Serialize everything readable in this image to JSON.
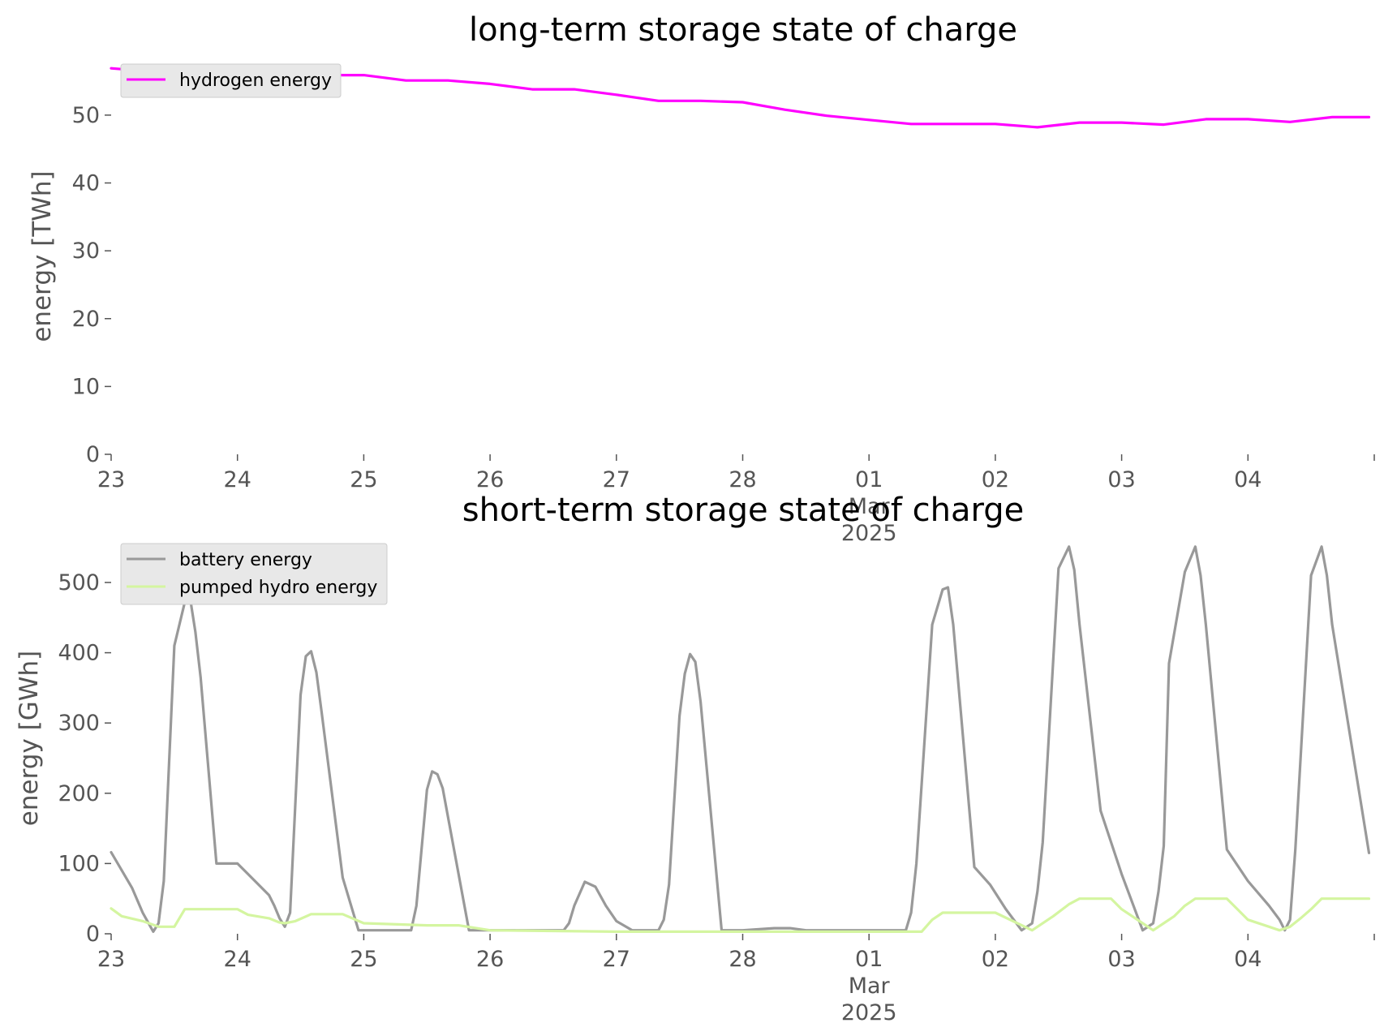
{
  "colors": {
    "hydrogen": "#ff00ff",
    "battery": "#999999",
    "pumped_hydro": "#d4f5a0",
    "axis_text": "#555555",
    "legend_bg": "#e8e8e8",
    "legend_border": "#cccccc"
  },
  "chart_data": [
    {
      "type": "line",
      "title": "long-term storage state of charge",
      "xlabel": "",
      "ylabel": "energy [TWh]",
      "xlim": [
        "2025-02-23 00:00",
        "2025-03-04 23:00"
      ],
      "ylim": [
        0,
        58
      ],
      "grid": false,
      "legend_position": "top-left",
      "y_ticks": [
        "0",
        "10",
        "20",
        "30",
        "40",
        "50"
      ],
      "x_ticks": [
        "23",
        "24",
        "25",
        "26",
        "27",
        "28",
        "01",
        "02",
        "03",
        "04"
      ],
      "x_tick_sublabel": "Mar",
      "x_tick_year": "2025",
      "series": [
        {
          "name": "hydrogen energy",
          "x": [
            "2025-02-23 00:00",
            "2025-02-23 08:00",
            "2025-02-23 16:00",
            "2025-02-24 00:00",
            "2025-02-24 08:00",
            "2025-02-24 16:00",
            "2025-02-24 20:00",
            "2025-02-25 00:00",
            "2025-02-25 08:00",
            "2025-02-25 16:00",
            "2025-02-26 00:00",
            "2025-02-26 08:00",
            "2025-02-26 16:00",
            "2025-02-27 00:00",
            "2025-02-27 08:00",
            "2025-02-27 16:00",
            "2025-02-28 00:00",
            "2025-02-28 08:00",
            "2025-02-28 16:00",
            "2025-03-01 00:00",
            "2025-03-01 08:00",
            "2025-03-01 16:00",
            "2025-03-02 00:00",
            "2025-03-02 08:00",
            "2025-03-02 16:00",
            "2025-03-03 00:00",
            "2025-03-03 08:00",
            "2025-03-03 16:00",
            "2025-03-04 00:00",
            "2025-03-04 08:00",
            "2025-03-04 16:00",
            "2025-03-04 23:00"
          ],
          "y": [
            56.9,
            56.4,
            56.4,
            56.4,
            56.1,
            56.0,
            55.9,
            55.9,
            55.1,
            55.1,
            54.6,
            53.8,
            53.8,
            53.0,
            52.1,
            52.1,
            51.9,
            50.8,
            49.9,
            49.3,
            48.7,
            48.7,
            48.7,
            48.2,
            48.9,
            48.9,
            48.6,
            49.4,
            49.4,
            49.0,
            49.7,
            49.7
          ]
        }
      ]
    },
    {
      "type": "line",
      "title": "short-term storage state of charge",
      "xlabel": "",
      "ylabel": "energy [GWh]",
      "xlim": [
        "2025-02-23 00:00",
        "2025-03-04 23:00"
      ],
      "ylim": [
        0,
        560
      ],
      "grid": false,
      "legend_position": "top-left",
      "y_ticks": [
        "0",
        "100",
        "200",
        "300",
        "400",
        "500"
      ],
      "x_ticks": [
        "23",
        "24",
        "25",
        "26",
        "27",
        "28",
        "01",
        "02",
        "03",
        "04"
      ],
      "x_tick_sublabel": "Mar",
      "x_tick_year": "2025",
      "series": [
        {
          "name": "battery energy",
          "x": [
            "2025-02-23 00:00",
            "2025-02-23 04:00",
            "2025-02-23 06:00",
            "2025-02-23 08:00",
            "2025-02-23 09:00",
            "2025-02-23 10:00",
            "2025-02-23 12:00",
            "2025-02-23 14:00",
            "2025-02-23 15:00",
            "2025-02-23 16:00",
            "2025-02-23 17:00",
            "2025-02-23 20:00",
            "2025-02-24 00:00",
            "2025-02-24 02:00",
            "2025-02-24 06:00",
            "2025-02-24 07:00",
            "2025-02-24 08:00",
            "2025-02-24 09:00",
            "2025-02-24 10:00",
            "2025-02-24 12:00",
            "2025-02-24 13:00",
            "2025-02-24 14:00",
            "2025-02-24 15:00",
            "2025-02-24 16:00",
            "2025-02-24 20:00",
            "2025-02-24 23:00",
            "2025-02-25 06:00",
            "2025-02-25 09:00",
            "2025-02-25 10:00",
            "2025-02-25 12:00",
            "2025-02-25 13:00",
            "2025-02-25 14:00",
            "2025-02-25 15:00",
            "2025-02-25 20:00",
            "2025-02-25 23:00",
            "2025-02-26 14:00",
            "2025-02-26 15:00",
            "2025-02-26 16:00",
            "2025-02-26 18:00",
            "2025-02-26 20:00",
            "2025-02-26 22:00",
            "2025-02-27 00:00",
            "2025-02-27 03:00",
            "2025-02-27 08:00",
            "2025-02-27 09:00",
            "2025-02-27 10:00",
            "2025-02-27 12:00",
            "2025-02-27 13:00",
            "2025-02-27 14:00",
            "2025-02-27 15:00",
            "2025-02-27 16:00",
            "2025-02-27 20:00",
            "2025-02-27 23:00",
            "2025-02-28 00:00",
            "2025-02-28 06:00",
            "2025-02-28 09:00",
            "2025-02-28 12:00",
            "2025-02-28 14:00",
            "2025-03-01 00:00",
            "2025-03-01 07:00",
            "2025-03-01 08:00",
            "2025-03-01 09:00",
            "2025-03-01 12:00",
            "2025-03-01 14:00",
            "2025-03-01 15:00",
            "2025-03-01 16:00",
            "2025-03-01 20:00",
            "2025-03-01 23:00",
            "2025-03-02 02:00",
            "2025-03-02 05:00",
            "2025-03-02 07:00",
            "2025-03-02 08:00",
            "2025-03-02 09:00",
            "2025-03-02 12:00",
            "2025-03-02 14:00",
            "2025-03-02 15:00",
            "2025-03-02 16:00",
            "2025-03-02 20:00",
            "2025-03-03 00:00",
            "2025-03-03 04:00",
            "2025-03-03 06:00",
            "2025-03-03 07:00",
            "2025-03-03 08:00",
            "2025-03-03 09:00",
            "2025-03-03 12:00",
            "2025-03-03 14:00",
            "2025-03-03 15:00",
            "2025-03-03 16:00",
            "2025-03-03 20:00",
            "2025-03-04 00:00",
            "2025-03-04 04:00",
            "2025-03-04 06:00",
            "2025-03-04 07:00",
            "2025-03-04 08:00",
            "2025-03-04 09:00",
            "2025-03-04 12:00",
            "2025-03-04 14:00",
            "2025-03-04 15:00",
            "2025-03-04 16:00",
            "2025-03-04 23:00"
          ],
          "y": [
            116,
            65,
            30,
            3,
            15,
            75,
            410,
            472,
            478,
            430,
            365,
            100,
            100,
            85,
            55,
            40,
            22,
            10,
            30,
            340,
            395,
            402,
            372,
            315,
            80,
            5,
            5,
            5,
            40,
            205,
            231,
            227,
            207,
            5,
            5,
            5,
            15,
            40,
            74,
            67,
            40,
            18,
            5,
            5,
            20,
            70,
            310,
            370,
            398,
            387,
            330,
            5,
            5,
            5,
            8,
            8,
            5,
            5,
            5,
            5,
            30,
            100,
            440,
            490,
            493,
            440,
            95,
            70,
            35,
            5,
            15,
            60,
            130,
            520,
            551,
            518,
            440,
            175,
            85,
            5,
            15,
            60,
            125,
            385,
            515,
            551,
            510,
            440,
            120,
            75,
            40,
            20,
            5,
            20,
            120,
            510,
            551,
            510,
            440,
            115
          ]
        },
        {
          "name": "pumped hydro energy",
          "x": [
            "2025-02-23 00:00",
            "2025-02-23 02:00",
            "2025-02-23 06:00",
            "2025-02-23 09:00",
            "2025-02-23 12:00",
            "2025-02-23 14:00",
            "2025-02-24 00:00",
            "2025-02-24 02:00",
            "2025-02-24 06:00",
            "2025-02-24 08:00",
            "2025-02-24 09:00",
            "2025-02-24 11:00",
            "2025-02-24 14:00",
            "2025-02-24 20:00",
            "2025-02-25 00:00",
            "2025-02-25 12:00",
            "2025-02-25 18:00",
            "2025-02-26 00:00",
            "2025-02-27 00:00",
            "2025-02-28 00:00",
            "2025-03-01 00:00",
            "2025-03-01 10:00",
            "2025-03-01 12:00",
            "2025-03-01 14:00",
            "2025-03-02 00:00",
            "2025-03-02 07:00",
            "2025-03-02 11:00",
            "2025-03-02 14:00",
            "2025-03-02 16:00",
            "2025-03-02 22:00",
            "2025-03-03 00:00",
            "2025-03-03 04:00",
            "2025-03-03 06:00",
            "2025-03-03 08:00",
            "2025-03-03 10:00",
            "2025-03-03 12:00",
            "2025-03-03 14:00",
            "2025-03-03 20:00",
            "2025-03-04 00:00",
            "2025-03-04 04:00",
            "2025-03-04 06:00",
            "2025-03-04 08:00",
            "2025-03-04 10:00",
            "2025-03-04 12:00",
            "2025-03-04 14:00",
            "2025-03-04 23:00"
          ],
          "y": [
            36,
            25,
            18,
            10,
            10,
            35,
            35,
            27,
            22,
            16,
            15,
            18,
            28,
            28,
            15,
            12,
            12,
            5,
            3,
            3,
            3,
            3,
            20,
            30,
            30,
            5,
            25,
            42,
            50,
            50,
            35,
            15,
            5,
            15,
            25,
            40,
            50,
            50,
            20,
            10,
            5,
            10,
            22,
            35,
            50,
            50
          ]
        }
      ]
    }
  ]
}
